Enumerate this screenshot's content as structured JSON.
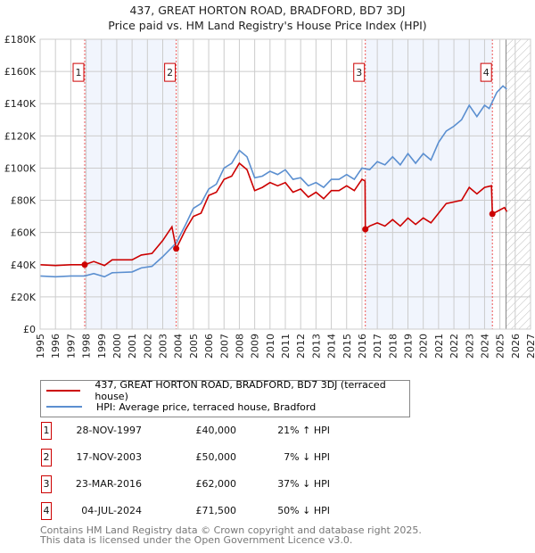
{
  "chart_data": {
    "type": "line",
    "title": "437, GREAT HORTON ROAD, BRADFORD, BD7 3DJ",
    "subtitle": "Price paid vs. HM Land Registry's House Price Index (HPI)",
    "xlim": [
      1995,
      2027
    ],
    "ylim": [
      0,
      180000
    ],
    "x_ticks": [
      "1995",
      "1996",
      "1997",
      "1998",
      "1999",
      "2000",
      "2001",
      "2002",
      "2003",
      "2004",
      "2005",
      "2006",
      "2007",
      "2008",
      "2009",
      "2010",
      "2011",
      "2012",
      "2013",
      "2014",
      "2015",
      "2016",
      "2017",
      "2018",
      "2019",
      "2020",
      "2021",
      "2022",
      "2023",
      "2024",
      "2025",
      "2026",
      "2027"
    ],
    "y_ticks": [
      {
        "v": 0,
        "label": "£0"
      },
      {
        "v": 20000,
        "label": "£20K"
      },
      {
        "v": 40000,
        "label": "£40K"
      },
      {
        "v": 60000,
        "label": "£60K"
      },
      {
        "v": 80000,
        "label": "£80K"
      },
      {
        "v": 100000,
        "label": "£100K"
      },
      {
        "v": 120000,
        "label": "£120K"
      },
      {
        "v": 140000,
        "label": "£140K"
      },
      {
        "v": 160000,
        "label": "£160K"
      },
      {
        "v": 180000,
        "label": "£180K"
      }
    ],
    "grid": true,
    "shaded_periods": [
      [
        1997.91,
        2003.88
      ],
      [
        2016.22,
        2024.51
      ]
    ],
    "forecast_from": 2025.4,
    "series": [
      {
        "name": "437, GREAT HORTON ROAD, BRADFORD, BD7 3DJ (terraced house)",
        "color": "#cc0000",
        "x": [
          1995,
          1996,
          1997,
          1997.9,
          1998.5,
          1999.2,
          1999.7,
          2001,
          2001.6,
          2002.3,
          2003,
          2003.6,
          2003.88,
          2004.5,
          2005,
          2005.5,
          2006,
          2006.5,
          2007,
          2007.5,
          2008,
          2008.5,
          2009,
          2009.5,
          2010,
          2010.5,
          2011,
          2011.5,
          2012,
          2012.5,
          2013,
          2013.5,
          2014,
          2014.5,
          2015,
          2015.5,
          2016.0,
          2016.2,
          2016.22,
          2016.5,
          2017,
          2017.5,
          2018,
          2018.5,
          2019,
          2019.5,
          2020,
          2020.5,
          2021,
          2021.5,
          2022,
          2022.5,
          2023,
          2023.5,
          2024,
          2024.45,
          2024.51,
          2025,
          2025.3,
          2025.45
        ],
        "values": [
          40000,
          39500,
          40000,
          40000,
          42000,
          39500,
          43000,
          43000,
          46000,
          47000,
          55000,
          63500,
          50000,
          62000,
          70000,
          72000,
          83000,
          85000,
          93000,
          95000,
          103000,
          99000,
          86000,
          88000,
          91000,
          89000,
          91000,
          85000,
          87000,
          82000,
          85000,
          81000,
          86000,
          86000,
          89000,
          86000,
          93000,
          92000,
          62000,
          64000,
          66000,
          64000,
          68000,
          64000,
          69000,
          65000,
          69000,
          66000,
          72000,
          78000,
          79000,
          80000,
          88000,
          84000,
          88000,
          89000,
          71500,
          74000,
          75500,
          73000
        ]
      },
      {
        "name": "HPI: Average price, terraced house, Bradford",
        "color": "#5b8fd0",
        "x": [
          1995,
          1996,
          1997,
          1997.9,
          1998.5,
          1999.2,
          1999.7,
          2001,
          2001.6,
          2002.3,
          2003,
          2003.88,
          2004.5,
          2005,
          2005.5,
          2006,
          2006.5,
          2007,
          2007.5,
          2008,
          2008.5,
          2009,
          2009.5,
          2010,
          2010.5,
          2011,
          2011.5,
          2012,
          2012.5,
          2013,
          2013.5,
          2014,
          2014.5,
          2015,
          2015.5,
          2016,
          2016.5,
          2017,
          2017.5,
          2018,
          2018.5,
          2019,
          2019.5,
          2020,
          2020.5,
          2021,
          2021.5,
          2022,
          2022.5,
          2023,
          2023.5,
          2024,
          2024.3,
          2024.8,
          2025.2,
          2025.45
        ],
        "values": [
          33000,
          32500,
          33000,
          33000,
          34500,
          32500,
          35000,
          35500,
          38000,
          39000,
          45000,
          53500,
          65000,
          75000,
          78000,
          87000,
          90000,
          100000,
          103000,
          111000,
          107000,
          94000,
          95000,
          98000,
          96000,
          99000,
          93000,
          94000,
          89000,
          91000,
          88000,
          93000,
          93000,
          96000,
          93000,
          100000,
          99000,
          104000,
          102000,
          107000,
          102000,
          109000,
          103000,
          109000,
          105000,
          116000,
          123000,
          126000,
          130000,
          139000,
          132000,
          139000,
          137000,
          147000,
          151000,
          149000
        ]
      }
    ],
    "sales": [
      {
        "n": "1",
        "x": 1997.91,
        "price": 40000
      },
      {
        "n": "2",
        "x": 2003.88,
        "price": 50000
      },
      {
        "n": "3",
        "x": 2016.22,
        "price": 62000
      },
      {
        "n": "4",
        "x": 2024.51,
        "price": 71500
      }
    ]
  },
  "legend": {
    "property": "437, GREAT HORTON ROAD, BRADFORD, BD7 3DJ (terraced house)",
    "hpi": "HPI: Average price, terraced house, Bradford"
  },
  "transactions": [
    {
      "n": "1",
      "date": "28-NOV-1997",
      "price": "£40,000",
      "pct": "21% ↑ HPI"
    },
    {
      "n": "2",
      "date": "17-NOV-2003",
      "price": "£50,000",
      "pct": "7% ↓ HPI"
    },
    {
      "n": "3",
      "date": "23-MAR-2016",
      "price": "£62,000",
      "pct": "37% ↓ HPI"
    },
    {
      "n": "4",
      "date": "04-JUL-2024",
      "price": "£71,500",
      "pct": "50% ↓ HPI"
    }
  ],
  "footer": {
    "line1": "Contains HM Land Registry data © Crown copyright and database right 2025.",
    "line2": "This data is licensed under the Open Government Licence v3.0."
  }
}
